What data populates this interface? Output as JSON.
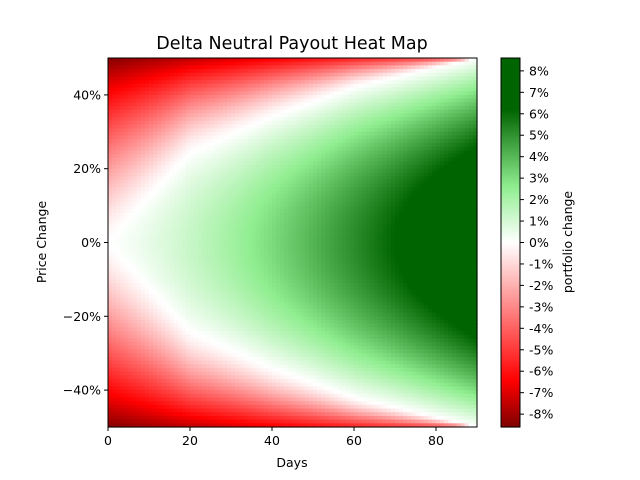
{
  "chart_data": {
    "type": "heatmap",
    "title": "Delta Neutral Payout Heat Map",
    "xlabel": "Days",
    "ylabel": "Price Change",
    "xlim": [
      0,
      90
    ],
    "ylim": [
      -0.5,
      0.5
    ],
    "x_ticks": [
      {
        "value": 0,
        "label": "0"
      },
      {
        "value": 20,
        "label": "20"
      },
      {
        "value": 40,
        "label": "40"
      },
      {
        "value": 60,
        "label": "60"
      },
      {
        "value": 80,
        "label": "80"
      }
    ],
    "y_ticks": [
      {
        "value": 0.4,
        "label": "40%"
      },
      {
        "value": 0.2,
        "label": "20%"
      },
      {
        "value": 0.0,
        "label": "0%"
      },
      {
        "value": -0.2,
        "label": "−20%"
      },
      {
        "value": -0.4,
        "label": "−40%"
      }
    ],
    "grid": false,
    "value_model": {
      "description": "portfolio change vs days held and price change, read from colour",
      "boundary_zero_change": [
        {
          "days": 0,
          "price_change": 0.0
        },
        {
          "days": 20,
          "price_change": 0.24
        },
        {
          "days": 40,
          "price_change": 0.34
        },
        {
          "days": 60,
          "price_change": 0.42
        },
        {
          "days": 90,
          "price_change": 0.5
        }
      ],
      "max_gain": {
        "days": 90,
        "price_change": 0.0,
        "portfolio_change": 0.085
      },
      "max_loss": {
        "days": 0,
        "price_change": 0.5,
        "portfolio_change": -0.085
      }
    },
    "colorbar": {
      "label": "portfolio change",
      "range": [
        -0.086,
        0.086
      ],
      "colors": {
        "negative_max": "#7f0000",
        "negative_mid": "#ff0000",
        "zero": "#ffffff",
        "positive_mid": "#90ee90",
        "positive_max": "#006400"
      },
      "ticks": [
        {
          "value": 0.08,
          "label": "8%"
        },
        {
          "value": 0.07,
          "label": "7%"
        },
        {
          "value": 0.06,
          "label": "6%"
        },
        {
          "value": 0.05,
          "label": "5%"
        },
        {
          "value": 0.04,
          "label": "4%"
        },
        {
          "value": 0.03,
          "label": "3%"
        },
        {
          "value": 0.02,
          "label": "2%"
        },
        {
          "value": 0.01,
          "label": "1%"
        },
        {
          "value": 0.0,
          "label": "0%"
        },
        {
          "value": -0.01,
          "label": "-1%"
        },
        {
          "value": -0.02,
          "label": "-2%"
        },
        {
          "value": -0.03,
          "label": "-3%"
        },
        {
          "value": -0.04,
          "label": "-4%"
        },
        {
          "value": -0.05,
          "label": "-5%"
        },
        {
          "value": -0.06,
          "label": "-6%"
        },
        {
          "value": -0.07,
          "label": "-7%"
        },
        {
          "value": -0.08,
          "label": "-8%"
        }
      ]
    }
  }
}
